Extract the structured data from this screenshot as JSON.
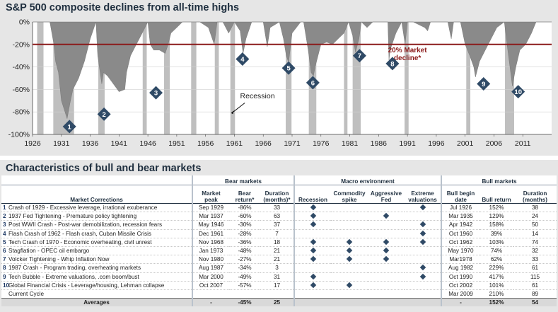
{
  "chart": {
    "title": "S&P 500 composite declines from all-time highs",
    "threshold_label_line1": "20% Market",
    "threshold_label_line2": "decline*",
    "recession_label": "Recession"
  },
  "chart_data": {
    "type": "area",
    "title": "S&P 500 composite declines from all-time highs",
    "xlabel": "",
    "ylabel": "",
    "xlim": [
      1926,
      2016
    ],
    "ylim": [
      -100,
      0
    ],
    "x_ticks": [
      1926,
      1931,
      1936,
      1941,
      1946,
      1951,
      1956,
      1961,
      1966,
      1971,
      1976,
      1981,
      1986,
      1991,
      1996,
      2001,
      2006,
      2011
    ],
    "y_ticks": [
      0,
      -20,
      -40,
      -60,
      -80,
      -100
    ],
    "y_tick_labels": [
      "0%",
      "-20%",
      "-40%",
      "-60%",
      "-80%",
      "-100%"
    ],
    "grid": "horizontal",
    "threshold": -20,
    "series": [
      {
        "x": [
          1926,
          1927,
          1928,
          1929.0,
          1929.7,
          1930,
          1930.5,
          1931,
          1931.5,
          1932.0,
          1932.5,
          1933,
          1933.5,
          1934,
          1935,
          1936,
          1937.0,
          1937.3,
          1938.0,
          1938.3,
          1939,
          1940,
          1941,
          1942.0,
          1942.3,
          1943,
          1944,
          1945,
          1946.0,
          1946.4,
          1947,
          1948,
          1949,
          1949.5,
          1950,
          1951,
          1952,
          1953,
          1954,
          1954.6,
          1955,
          1956.5,
          1957.5,
          1958,
          1959,
          1960,
          1961,
          1962.0,
          1962.5,
          1963.0,
          1964,
          1966.0,
          1966.7,
          1967.2,
          1968.8,
          1969.5,
          1970.0,
          1970.4,
          1971,
          1972.5,
          1973.0,
          1973.8,
          1974.3,
          1974.7,
          1975.0,
          1976,
          1977,
          1978,
          1979,
          1980,
          1980.8,
          1981.5,
          1982.0,
          1982.6,
          1983,
          1984,
          1985,
          1987.6,
          1987.8,
          1988,
          1989,
          1990.0,
          1990.6,
          1991,
          1992,
          1994.0,
          1994.5,
          1995,
          1998.0,
          1998.6,
          1999,
          2000.2,
          2001.0,
          2001.8,
          2002.5,
          2002.8,
          2003.5,
          2004.5,
          2005.5,
          2006.5,
          2007.8,
          2008.4,
          2008.9,
          2009.2,
          2009.8,
          2010.5,
          2011.5,
          2012.5,
          2013.3,
          2014,
          2015,
          2016
        ],
        "values": [
          0,
          0,
          0,
          0,
          -20,
          -35,
          -45,
          -70,
          -78,
          -86,
          -72,
          -60,
          -55,
          -50,
          -35,
          -15,
          0,
          -30,
          -55,
          -45,
          -48,
          -55,
          -62,
          -60,
          -45,
          -30,
          -20,
          -10,
          0,
          -20,
          -25,
          -25,
          -28,
          -20,
          -10,
          -5,
          0,
          0,
          0,
          0,
          0,
          -5,
          -20,
          0,
          0,
          -10,
          0,
          -8,
          -28,
          -15,
          0,
          0,
          -22,
          -5,
          0,
          -15,
          -30,
          -36,
          -10,
          0,
          0,
          -25,
          -45,
          -48,
          -40,
          -20,
          -18,
          -20,
          -15,
          -10,
          0,
          -12,
          -27,
          -15,
          0,
          -5,
          0,
          0,
          -34,
          -25,
          -10,
          0,
          -20,
          0,
          0,
          -5,
          -8,
          0,
          0,
          -15,
          0,
          0,
          -20,
          -30,
          -40,
          -49,
          -35,
          -25,
          -15,
          -5,
          0,
          -25,
          -45,
          -57,
          -40,
          -25,
          -20,
          -10,
          0,
          0,
          0,
          0
        ]
      }
    ],
    "recessions": [
      [
        1926.8,
        1927.9
      ],
      [
        1929.6,
        1933.2
      ],
      [
        1937.4,
        1938.5
      ],
      [
        1945.1,
        1945.8
      ],
      [
        1948.8,
        1949.8
      ],
      [
        1953.5,
        1954.4
      ],
      [
        1957.6,
        1958.3
      ],
      [
        1960.3,
        1961.1
      ],
      [
        1969.9,
        1970.9
      ],
      [
        1973.9,
        1975.2
      ],
      [
        1980.0,
        1980.6
      ],
      [
        1981.5,
        1982.9
      ],
      [
        1990.5,
        1991.2
      ],
      [
        2001.2,
        2001.9
      ],
      [
        2007.9,
        2009.5
      ]
    ],
    "markers": [
      {
        "label": "1",
        "x": 1932.4,
        "y": -93
      },
      {
        "label": "2",
        "x": 1938.4,
        "y": -82
      },
      {
        "label": "3",
        "x": 1947.4,
        "y": -63
      },
      {
        "label": "4",
        "x": 1962.4,
        "y": -33
      },
      {
        "label": "5",
        "x": 1970.4,
        "y": -41
      },
      {
        "label": "6",
        "x": 1974.6,
        "y": -54
      },
      {
        "label": "7",
        "x": 1982.7,
        "y": -30
      },
      {
        "label": "8",
        "x": 1988.4,
        "y": -37
      },
      {
        "label": "9",
        "x": 2004.2,
        "y": -55
      },
      {
        "label": "10",
        "x": 2010.2,
        "y": -62
      }
    ],
    "annotations": [
      "20% Market decline*",
      "Recession"
    ]
  },
  "table": {
    "title": "Characteristics of bull and bear markets",
    "group_headers": {
      "bear": "Bear markets",
      "macro": "Macro environment",
      "bull": "Bull markets"
    },
    "col_headers": {
      "market": "Market Corrections",
      "peak": "Market peak",
      "bear_return": "Bear return*",
      "bear_duration": "Duration (months)*",
      "recession": "Recession",
      "commodity": "Commodity spike",
      "fed": "Aggressive Fed",
      "valuations": "Extreme valuations",
      "bull_begin": "Bull begin date",
      "bull_return": "Bull return",
      "bull_duration": "Duration (months)"
    },
    "rows": [
      {
        "num": "1",
        "name": "Crash of 1929 - Excessive leverage, irrational exuberance",
        "peak": "Sep 1929",
        "bear_return": "-86%",
        "bear_duration": "33",
        "recession": "1",
        "commodity": "",
        "fed": "",
        "valuations": "1",
        "bull_begin": "Jul 1926",
        "bull_return": "152%",
        "bull_duration": "38"
      },
      {
        "num": "2",
        "name": "1937 Fed Tightening - Premature policy tightening",
        "peak": "Mar 1937",
        "bear_return": "-60%",
        "bear_duration": "63",
        "recession": "1",
        "commodity": "",
        "fed": "1",
        "valuations": "",
        "bull_begin": "Mar 1935",
        "bull_return": "129%",
        "bull_duration": "24"
      },
      {
        "num": "3",
        "name": "Post WWII Crash - Post-war demobilization, recession fears",
        "peak": "May 1946",
        "bear_return": "-30%",
        "bear_duration": "37",
        "recession": "1",
        "commodity": "",
        "fed": "",
        "valuations": "1",
        "bull_begin": "Apr 1942",
        "bull_return": "158%",
        "bull_duration": "50"
      },
      {
        "num": "4",
        "name": "Flash Crash of 1962 - Flash crash, Cuban Missile Crisis",
        "peak": "Dec 1961",
        "bear_return": "-28%",
        "bear_duration": "7",
        "recession": "",
        "commodity": "",
        "fed": "",
        "valuations": "1",
        "bull_begin": "Oct 1960",
        "bull_return": "39%",
        "bull_duration": "14"
      },
      {
        "num": "5",
        "name": "Tech Crash of 1970 - Economic overheating, civil unrest",
        "peak": "Nov 1968",
        "bear_return": "-36%",
        "bear_duration": "18",
        "recession": "1",
        "commodity": "1",
        "fed": "1",
        "valuations": "1",
        "bull_begin": "Oct 1962",
        "bull_return": "103%",
        "bull_duration": "74"
      },
      {
        "num": "6",
        "name": "Stagflation - OPEC oil embargo",
        "peak": "Jan 1973",
        "bear_return": "-48%",
        "bear_duration": "21",
        "recession": "1",
        "commodity": "1",
        "fed": "1",
        "valuations": "",
        "bull_begin": "May 1970",
        "bull_return": "74%",
        "bull_duration": "32"
      },
      {
        "num": "7",
        "name": "Volcker Tightening - Whip Inflation Now",
        "peak": "Nov 1980",
        "bear_return": "-27%",
        "bear_duration": "21",
        "recession": "1",
        "commodity": "1",
        "fed": "1",
        "valuations": "",
        "bull_begin": "Mar1978",
        "bull_return": "62%",
        "bull_duration": "33"
      },
      {
        "num": "8",
        "name": "1987 Crash - Program trading, overheating markets",
        "peak": "Aug 1987",
        "bear_return": "-34%",
        "bear_duration": "3",
        "recession": "",
        "commodity": "",
        "fed": "",
        "valuations": "1",
        "bull_begin": "Aug 1982",
        "bull_return": "229%",
        "bull_duration": "61"
      },
      {
        "num": "9",
        "name": "Tech Bubble - Extreme valuations, .com boom/bust",
        "peak": "Mar 2000",
        "bear_return": "-49%",
        "bear_duration": "31",
        "recession": "1",
        "commodity": "",
        "fed": "",
        "valuations": "1",
        "bull_begin": "Oct 1990",
        "bull_return": "417%",
        "bull_duration": "115"
      },
      {
        "num": "10",
        "name": "Global Financial Crisis - Leverage/housing, Lehman collapse",
        "peak": "Oct 2007",
        "bear_return": "-57%",
        "bear_duration": "17",
        "recession": "1",
        "commodity": "1",
        "fed": "",
        "valuations": "",
        "bull_begin": "Oct 2002",
        "bull_return": "101%",
        "bull_duration": "61"
      },
      {
        "num": "",
        "name": "Current Cycle",
        "peak": "",
        "bear_return": "",
        "bear_duration": "",
        "recession": "",
        "commodity": "",
        "fed": "",
        "valuations": "",
        "bull_begin": "Mar 2009",
        "bull_return": "210%",
        "bull_duration": "89"
      }
    ],
    "averages": {
      "label": "Averages",
      "peak": "-",
      "bear_return": "-45%",
      "bear_duration": "25",
      "bull_begin": "-",
      "bull_return": "152%",
      "bull_duration": "54"
    }
  },
  "colors": {
    "area": "#8a8a8a",
    "recession": "#bfbfbf",
    "threshold": "#8b1a1a",
    "marker": "#2f4a66",
    "title": "#1f2f3f"
  }
}
